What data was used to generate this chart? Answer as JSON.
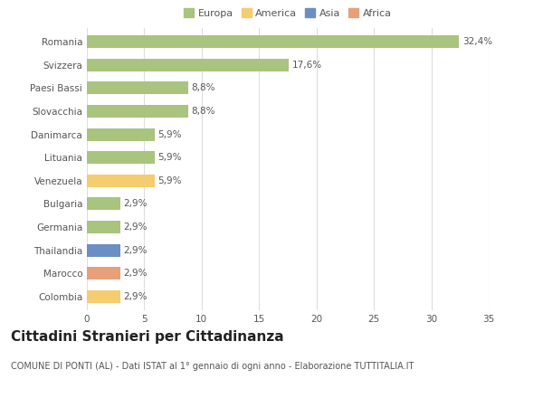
{
  "categories": [
    "Romania",
    "Svizzera",
    "Paesi Bassi",
    "Slovacchia",
    "Danimarca",
    "Lituania",
    "Venezuela",
    "Bulgaria",
    "Germania",
    "Thailandia",
    "Marocco",
    "Colombia"
  ],
  "values": [
    32.4,
    17.6,
    8.8,
    8.8,
    5.9,
    5.9,
    5.9,
    2.9,
    2.9,
    2.9,
    2.9,
    2.9
  ],
  "labels": [
    "32,4%",
    "17,6%",
    "8,8%",
    "8,8%",
    "5,9%",
    "5,9%",
    "5,9%",
    "2,9%",
    "2,9%",
    "2,9%",
    "2,9%",
    "2,9%"
  ],
  "colors": [
    "#a8c47e",
    "#a8c47e",
    "#a8c47e",
    "#a8c47e",
    "#a8c47e",
    "#a8c47e",
    "#f5cc6e",
    "#a8c47e",
    "#a8c47e",
    "#6b8ec4",
    "#e8a07a",
    "#f5cc6e"
  ],
  "legend_labels": [
    "Europa",
    "America",
    "Asia",
    "Africa"
  ],
  "legend_colors": [
    "#a8c47e",
    "#f5cc6e",
    "#6b8ec4",
    "#e8a07a"
  ],
  "xlim": [
    0,
    35
  ],
  "xticks": [
    0,
    5,
    10,
    15,
    20,
    25,
    30,
    35
  ],
  "title": "Cittadini Stranieri per Cittadinanza",
  "subtitle": "COMUNE DI PONTI (AL) - Dati ISTAT al 1° gennaio di ogni anno - Elaborazione TUTTITALIA.IT",
  "fig_bg_color": "#ffffff",
  "plot_bg_color": "#ffffff",
  "bar_height": 0.55,
  "grid_color": "#dddddd",
  "text_color": "#555555",
  "label_fontsize": 7.5,
  "tick_fontsize": 7.5,
  "title_fontsize": 11,
  "subtitle_fontsize": 7.0,
  "legend_fontsize": 8.0
}
